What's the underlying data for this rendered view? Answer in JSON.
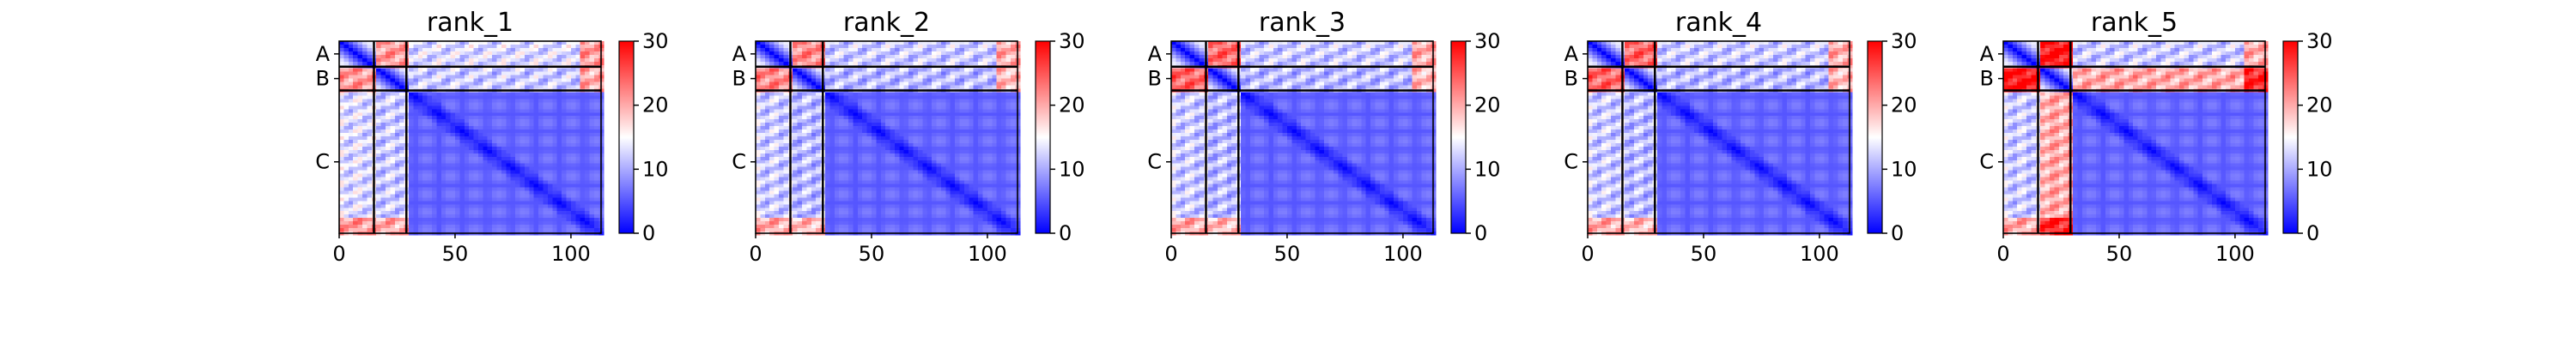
{
  "chart_data": {
    "type": "heatmap",
    "colormap": "bwr",
    "colorbar": {
      "ticks": [
        "0",
        "10",
        "20",
        "30"
      ],
      "min": 0,
      "max": 30
    },
    "x_axis": {
      "ticks": [
        "0",
        "50",
        "100"
      ],
      "tick_values": [
        0,
        50,
        100
      ],
      "range": [
        0,
        113
      ]
    },
    "chains": [
      {
        "label": "A",
        "start": 0,
        "end": 15
      },
      {
        "label": "B",
        "start": 15,
        "end": 29
      },
      {
        "label": "C",
        "start": 29,
        "end": 113
      }
    ],
    "panels": [
      {
        "title": "rank_1",
        "ab_offchain": 21,
        "ca_base": 13,
        "cb_base": 12
      },
      {
        "title": "rank_2",
        "ab_offchain": 22,
        "ca_base": 12,
        "cb_base": 11
      },
      {
        "title": "rank_3",
        "ab_offchain": 24,
        "ca_base": 12,
        "cb_base": 11
      },
      {
        "title": "rank_4",
        "ab_offchain": 24,
        "ca_base": 12,
        "cb_base": 11
      },
      {
        "title": "rank_5",
        "ab_offchain": 29,
        "ca_base": 12,
        "cb_base": 20
      }
    ]
  }
}
